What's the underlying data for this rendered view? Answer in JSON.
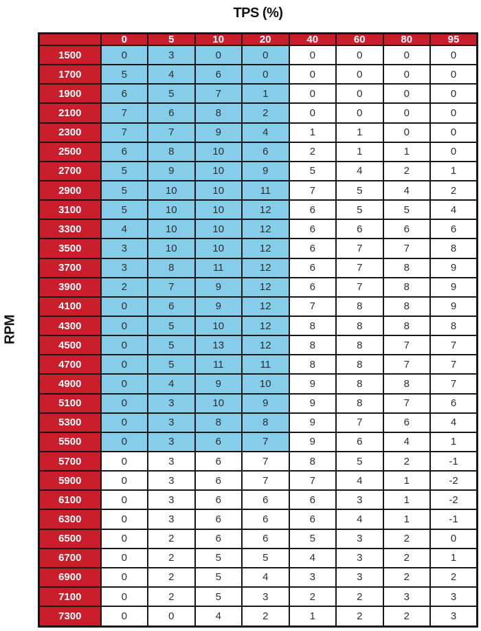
{
  "colors": {
    "header_bg": "#CB1E2C",
    "highlight_cell_bg": "#85CDE9",
    "default_cell_bg": "#FFFFFF",
    "grid_border": "#161616",
    "header_text": "#FFFFFF",
    "cell_text": "#2D2D2D",
    "title_text": "#111111"
  },
  "chart_data": {
    "type": "table",
    "title": "TPS (%)",
    "xlabel": "TPS (%)",
    "ylabel": "RPM",
    "columns": [
      "0",
      "5",
      "10",
      "20",
      "40",
      "60",
      "80",
      "95"
    ],
    "rows": [
      "1500",
      "1700",
      "1900",
      "2100",
      "2300",
      "2500",
      "2700",
      "2900",
      "3100",
      "3300",
      "3500",
      "3700",
      "3900",
      "4100",
      "4300",
      "4500",
      "4700",
      "4900",
      "5100",
      "5300",
      "5500",
      "5700",
      "5900",
      "6100",
      "6300",
      "6500",
      "6700",
      "6900",
      "7100",
      "7300"
    ],
    "values": [
      [
        0,
        3,
        0,
        0,
        0,
        0,
        0,
        0
      ],
      [
        5,
        4,
        6,
        0,
        0,
        0,
        0,
        0
      ],
      [
        6,
        5,
        7,
        1,
        0,
        0,
        0,
        0
      ],
      [
        7,
        6,
        8,
        2,
        0,
        0,
        0,
        0
      ],
      [
        7,
        7,
        9,
        4,
        1,
        1,
        0,
        0
      ],
      [
        6,
        8,
        10,
        6,
        2,
        1,
        1,
        0
      ],
      [
        5,
        9,
        10,
        9,
        5,
        4,
        2,
        1
      ],
      [
        5,
        10,
        10,
        11,
        7,
        5,
        4,
        2
      ],
      [
        5,
        10,
        10,
        12,
        6,
        5,
        5,
        4
      ],
      [
        4,
        10,
        10,
        12,
        6,
        6,
        6,
        6
      ],
      [
        3,
        10,
        10,
        12,
        6,
        7,
        7,
        8
      ],
      [
        3,
        8,
        11,
        12,
        6,
        7,
        8,
        9
      ],
      [
        2,
        7,
        9,
        12,
        6,
        7,
        8,
        9
      ],
      [
        0,
        6,
        9,
        12,
        7,
        8,
        8,
        9
      ],
      [
        0,
        5,
        10,
        12,
        8,
        8,
        8,
        8
      ],
      [
        0,
        5,
        13,
        12,
        8,
        8,
        7,
        7
      ],
      [
        0,
        5,
        11,
        11,
        8,
        8,
        7,
        7
      ],
      [
        0,
        4,
        9,
        10,
        9,
        8,
        8,
        7
      ],
      [
        0,
        3,
        10,
        9,
        9,
        8,
        7,
        6
      ],
      [
        0,
        3,
        8,
        8,
        9,
        7,
        6,
        4
      ],
      [
        0,
        3,
        6,
        7,
        9,
        6,
        4,
        1
      ],
      [
        0,
        3,
        6,
        7,
        8,
        5,
        2,
        -1
      ],
      [
        0,
        3,
        6,
        7,
        7,
        4,
        1,
        -2
      ],
      [
        0,
        3,
        6,
        6,
        6,
        3,
        1,
        -2
      ],
      [
        0,
        3,
        6,
        6,
        6,
        4,
        1,
        -1
      ],
      [
        0,
        2,
        6,
        6,
        5,
        3,
        2,
        0
      ],
      [
        0,
        2,
        5,
        5,
        4,
        3,
        2,
        1
      ],
      [
        0,
        2,
        5,
        4,
        3,
        3,
        2,
        2
      ],
      [
        0,
        2,
        5,
        3,
        2,
        2,
        3,
        3
      ],
      [
        0,
        0,
        4,
        2,
        1,
        2,
        2,
        3
      ]
    ],
    "highlight": {
      "last_row": "5500",
      "last_column": "20"
    }
  }
}
